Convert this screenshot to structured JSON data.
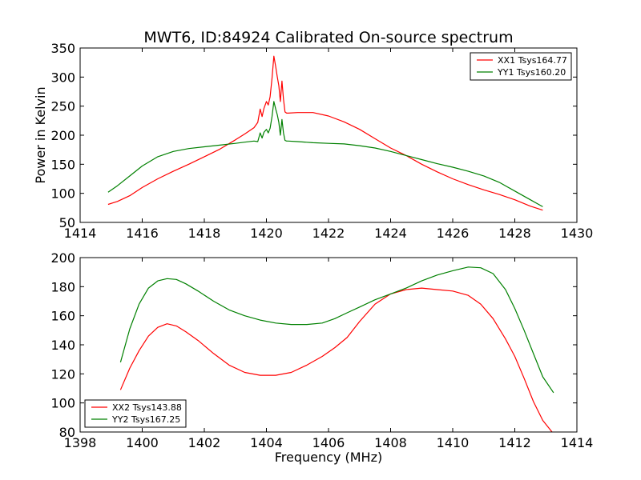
{
  "figure": {
    "title": "MWT6, ID:84924 Calibrated On-source spectrum"
  },
  "chart_data": [
    {
      "type": "line",
      "title": "MWT6, ID:84924 Calibrated On-source spectrum",
      "xlabel": "",
      "ylabel": "Power in Kelvin",
      "xlim": [
        1414,
        1430
      ],
      "ylim": [
        50,
        350
      ],
      "xticks": [
        1414,
        1416,
        1418,
        1420,
        1422,
        1424,
        1426,
        1428,
        1430
      ],
      "yticks": [
        50,
        100,
        150,
        200,
        250,
        300,
        350
      ],
      "grid": false,
      "legend_position": "top-right",
      "series": [
        {
          "name": "XX1 Tsys164.77",
          "color": "#ff0000",
          "x": [
            1414.9,
            1415.2,
            1415.6,
            1416.0,
            1416.5,
            1417.0,
            1417.5,
            1418.0,
            1418.5,
            1419.0,
            1419.3,
            1419.6,
            1419.72,
            1419.8,
            1419.86,
            1419.92,
            1420.0,
            1420.06,
            1420.12,
            1420.18,
            1420.24,
            1420.3,
            1420.35,
            1420.4,
            1420.45,
            1420.5,
            1420.55,
            1420.6,
            1420.65,
            1420.7,
            1421.0,
            1421.5,
            1422.0,
            1422.5,
            1423.0,
            1423.5,
            1424.0,
            1424.5,
            1425.0,
            1425.5,
            1426.0,
            1426.5,
            1427.0,
            1427.5,
            1428.0,
            1428.5,
            1428.9
          ],
          "y": [
            81,
            86,
            96,
            110,
            125,
            138,
            150,
            163,
            176,
            192,
            202,
            213,
            222,
            245,
            232,
            246,
            258,
            252,
            266,
            298,
            336,
            318,
            300,
            285,
            258,
            293,
            262,
            240,
            238,
            238,
            239,
            239,
            233,
            223,
            210,
            194,
            178,
            165,
            150,
            137,
            125,
            115,
            106,
            98,
            89,
            78,
            71
          ]
        },
        {
          "name": "YY1 Tsys160.20",
          "color": "#008000",
          "x": [
            1414.9,
            1415.2,
            1415.6,
            1416.0,
            1416.5,
            1417.0,
            1417.5,
            1418.0,
            1418.5,
            1419.0,
            1419.3,
            1419.6,
            1419.72,
            1419.8,
            1419.86,
            1419.92,
            1420.0,
            1420.06,
            1420.12,
            1420.18,
            1420.24,
            1420.3,
            1420.35,
            1420.4,
            1420.45,
            1420.5,
            1420.55,
            1420.6,
            1420.65,
            1420.7,
            1421.0,
            1421.5,
            1422.0,
            1422.5,
            1423.0,
            1423.5,
            1424.0,
            1424.5,
            1425.0,
            1425.5,
            1426.0,
            1426.5,
            1427.0,
            1427.5,
            1428.0,
            1428.5,
            1428.9
          ],
          "y": [
            102,
            113,
            130,
            147,
            163,
            172,
            177,
            180,
            183,
            186,
            188,
            190,
            189,
            204,
            195,
            205,
            210,
            204,
            212,
            232,
            258,
            245,
            235,
            222,
            200,
            227,
            204,
            191,
            190,
            190,
            189,
            187,
            186,
            185,
            182,
            178,
            172,
            165,
            158,
            151,
            145,
            138,
            130,
            119,
            104,
            89,
            77
          ]
        }
      ]
    },
    {
      "type": "line",
      "title": "",
      "xlabel": "Frequency (MHz)",
      "ylabel": "",
      "xlim": [
        1398,
        1414
      ],
      "ylim": [
        80,
        200
      ],
      "xticks": [
        1398,
        1400,
        1402,
        1404,
        1406,
        1408,
        1410,
        1412,
        1414
      ],
      "yticks": [
        80,
        100,
        120,
        140,
        160,
        180,
        200
      ],
      "grid": false,
      "legend_position": "bottom-left",
      "series": [
        {
          "name": "XX2 Tsys143.88",
          "color": "#ff0000",
          "x": [
            1399.3,
            1399.6,
            1399.9,
            1400.2,
            1400.5,
            1400.8,
            1401.1,
            1401.4,
            1401.8,
            1402.3,
            1402.8,
            1403.3,
            1403.8,
            1404.3,
            1404.8,
            1405.3,
            1405.8,
            1406.2,
            1406.6,
            1407.0,
            1407.5,
            1408.0,
            1408.5,
            1409.0,
            1409.5,
            1410.0,
            1410.5,
            1410.9,
            1411.3,
            1411.7,
            1412.0,
            1412.3,
            1412.6,
            1412.9,
            1413.2
          ],
          "y": [
            109,
            124,
            136,
            146,
            152,
            154.5,
            153,
            149,
            143,
            134,
            126,
            121,
            119,
            119,
            121,
            126,
            132,
            138,
            145,
            156,
            168,
            175,
            178,
            179,
            178,
            177,
            174,
            168,
            158,
            144,
            132,
            117,
            101,
            88,
            80
          ]
        },
        {
          "name": "YY2 Tsys167.25",
          "color": "#008000",
          "x": [
            1399.3,
            1399.6,
            1399.9,
            1400.2,
            1400.5,
            1400.8,
            1401.1,
            1401.4,
            1401.8,
            1402.3,
            1402.8,
            1403.3,
            1403.8,
            1404.3,
            1404.8,
            1405.3,
            1405.8,
            1406.2,
            1406.6,
            1407.0,
            1407.5,
            1408.0,
            1408.5,
            1409.0,
            1409.5,
            1410.0,
            1410.5,
            1410.9,
            1411.3,
            1411.7,
            1412.0,
            1412.3,
            1412.6,
            1412.9,
            1413.25
          ],
          "y": [
            128,
            151,
            168,
            179,
            184,
            185.5,
            185,
            182,
            177,
            170,
            164,
            160,
            157,
            155,
            154,
            154,
            155,
            158,
            162,
            166,
            171,
            175,
            179,
            184,
            188,
            191,
            193.5,
            193,
            189,
            178,
            165,
            150,
            134,
            118,
            107
          ]
        }
      ]
    }
  ]
}
